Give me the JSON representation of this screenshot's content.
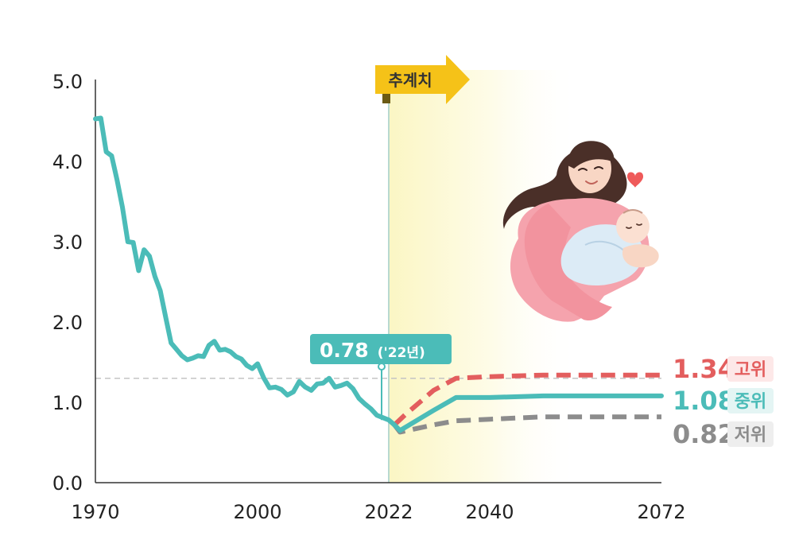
{
  "chart_data": {
    "type": "line",
    "title": "",
    "xlabel": "",
    "ylabel": "",
    "ylim": [
      0,
      5
    ],
    "y_ticks": [
      "0.0",
      "1.0",
      "2.0",
      "3.0",
      "4.0",
      "5.0"
    ],
    "x_ticks": [
      "1970",
      "2000",
      "2022",
      "2040",
      "2072"
    ],
    "projection_label": "추계치",
    "projection_start": 2022,
    "reference_line": 1.3,
    "callout": {
      "value": "0.78",
      "suffix": "('22년)"
    },
    "series": [
      {
        "values": [
          [
            1970,
            4.53
          ],
          [
            1971,
            4.54
          ],
          [
            1972,
            4.12
          ],
          [
            1973,
            4.07
          ],
          [
            1974,
            3.77
          ],
          [
            1975,
            3.43
          ],
          [
            1976,
            3.0
          ],
          [
            1977,
            2.99
          ],
          [
            1978,
            2.64
          ],
          [
            1979,
            2.9
          ],
          [
            1980,
            2.82
          ],
          [
            1981,
            2.57
          ],
          [
            1982,
            2.39
          ],
          [
            1983,
            2.06
          ],
          [
            1984,
            1.74
          ],
          [
            1985,
            1.66
          ],
          [
            1986,
            1.58
          ],
          [
            1987,
            1.53
          ],
          [
            1988,
            1.55
          ],
          [
            1989,
            1.58
          ],
          [
            1990,
            1.57
          ],
          [
            1991,
            1.71
          ],
          [
            1992,
            1.76
          ],
          [
            1993,
            1.65
          ],
          [
            1994,
            1.66
          ],
          [
            1995,
            1.63
          ],
          [
            1996,
            1.57
          ],
          [
            1997,
            1.54
          ],
          [
            1998,
            1.46
          ],
          [
            1999,
            1.42
          ],
          [
            2000,
            1.48
          ],
          [
            2001,
            1.31
          ],
          [
            2002,
            1.18
          ],
          [
            2003,
            1.19
          ],
          [
            2004,
            1.16
          ],
          [
            2005,
            1.09
          ],
          [
            2006,
            1.13
          ],
          [
            2007,
            1.26
          ],
          [
            2008,
            1.19
          ],
          [
            2009,
            1.15
          ],
          [
            2010,
            1.23
          ],
          [
            2011,
            1.24
          ],
          [
            2012,
            1.3
          ],
          [
            2013,
            1.19
          ],
          [
            2014,
            1.21
          ],
          [
            2015,
            1.24
          ],
          [
            2016,
            1.17
          ],
          [
            2017,
            1.05
          ],
          [
            2018,
            0.98
          ],
          [
            2019,
            0.92
          ],
          [
            2020,
            0.84
          ],
          [
            2021,
            0.81
          ],
          [
            2022,
            0.78
          ],
          [
            2023,
            0.72
          ]
        ],
        "color": "#4bbcb8"
      },
      {
        "name": "고위",
        "end_label": "1.34",
        "values": [
          [
            2023,
            0.72
          ],
          [
            2025,
            0.85
          ],
          [
            2030,
            1.15
          ],
          [
            2034,
            1.3
          ],
          [
            2040,
            1.32
          ],
          [
            2050,
            1.34
          ],
          [
            2072,
            1.34
          ]
        ],
        "color": "#e35e5e",
        "dashed": true
      },
      {
        "name": "중위",
        "end_label": "1.08",
        "values": [
          [
            2023,
            0.72
          ],
          [
            2024,
            0.65
          ],
          [
            2030,
            0.9
          ],
          [
            2034,
            1.06
          ],
          [
            2040,
            1.06
          ],
          [
            2050,
            1.08
          ],
          [
            2072,
            1.08
          ]
        ],
        "color": "#4bbcb8"
      },
      {
        "name": "저위",
        "end_label": "0.82",
        "values": [
          [
            2023,
            0.72
          ],
          [
            2024,
            0.63
          ],
          [
            2030,
            0.72
          ],
          [
            2034,
            0.77
          ],
          [
            2040,
            0.79
          ],
          [
            2050,
            0.82
          ],
          [
            2072,
            0.82
          ]
        ],
        "color": "#8c8c8c",
        "dashed": true
      }
    ]
  }
}
